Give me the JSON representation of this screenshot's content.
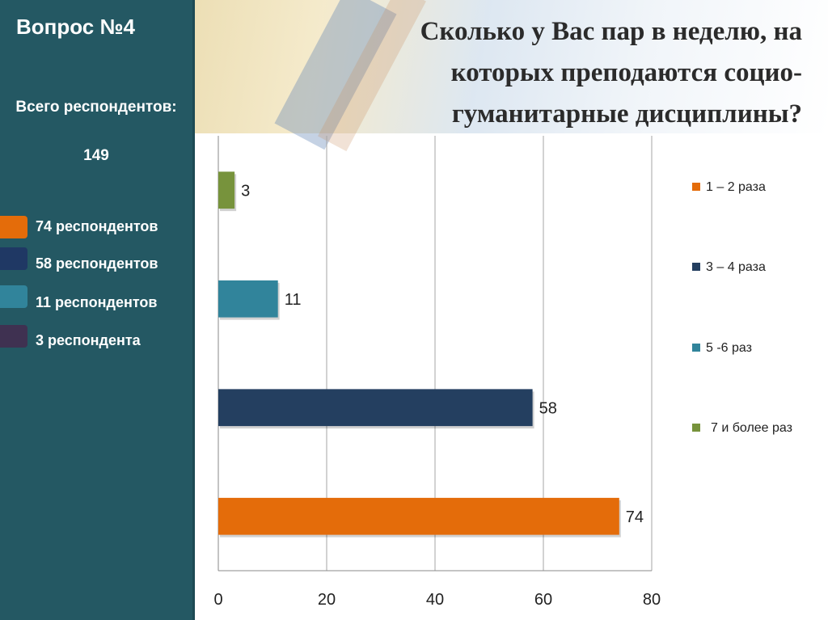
{
  "sidebar": {
    "question": "Вопрос №4",
    "total_label": "Всего респондентов:",
    "total_count": "149",
    "legend": [
      {
        "color": "#e46c0a",
        "text": "74 респондентов"
      },
      {
        "color": "#1f3864",
        "text": "58 респондентов"
      },
      {
        "color": "#31849b",
        "text": "11 респондентов"
      },
      {
        "color": "#3f3151",
        "text": "3 респондента"
      }
    ]
  },
  "chart_data": {
    "type": "bar",
    "orientation": "horizontal",
    "title": "Сколько у Вас пар в неделю, на которых преподаются социо-гуманитарные дисциплины?",
    "categories": [
      "1 – 2 раза",
      "3 – 4 раза",
      "5 -6 раз",
      "7 и более раз"
    ],
    "values": [
      74,
      58,
      11,
      3
    ],
    "colors": [
      "#e46c0a",
      "#243f60",
      "#31849b",
      "#77933c"
    ],
    "xlim": [
      0,
      80
    ],
    "xticks": [
      0,
      20,
      40,
      60,
      80
    ],
    "grid": true,
    "legend_position": "right"
  }
}
